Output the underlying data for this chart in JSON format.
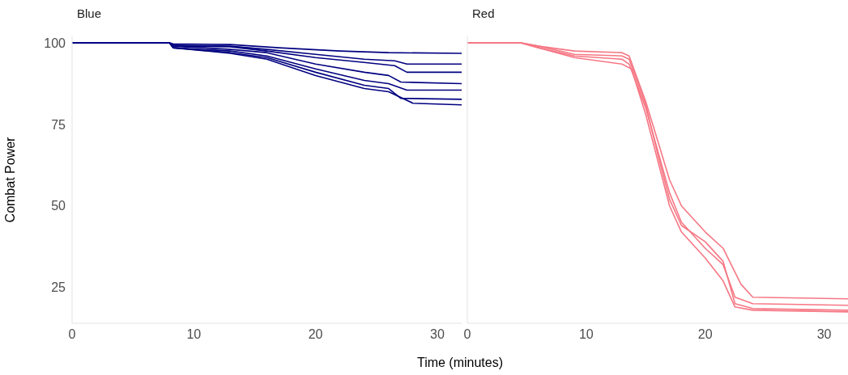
{
  "chart_data": [
    {
      "type": "line",
      "title": "Blue",
      "ylabel": "Combat Power",
      "xlabel": "Time (minutes)",
      "xlim": [
        0,
        32
      ],
      "xticks": [
        0,
        10,
        20,
        30
      ],
      "ylim": [
        14,
        102
      ],
      "yticks": [
        25,
        50,
        75,
        100
      ],
      "series": [
        {
          "color": "#000080",
          "x": [
            0,
            8,
            8.3,
            13,
            17,
            22,
            26,
            32
          ],
          "values": [
            100,
            100,
            99.7,
            99.5,
            98.5,
            97.5,
            97,
            96.8
          ]
        },
        {
          "color": "#000080",
          "x": [
            0,
            8,
            8.3,
            13,
            16,
            20,
            24,
            26.5,
            27.5,
            32
          ],
          "values": [
            100,
            100,
            99.3,
            99,
            98,
            96.5,
            95,
            94.5,
            93.5,
            93.5
          ]
        },
        {
          "color": "#000080",
          "x": [
            0,
            8,
            8.3,
            13,
            16,
            20,
            24,
            26.5,
            27.5,
            32
          ],
          "values": [
            100,
            100,
            99,
            98.8,
            97.5,
            95.5,
            94,
            93,
            91,
            91
          ]
        },
        {
          "color": "#000080",
          "x": [
            0,
            8,
            8.3,
            13,
            16,
            20,
            24,
            26,
            27,
            32
          ],
          "values": [
            100,
            100,
            99,
            98,
            97,
            93.5,
            91,
            90,
            88,
            87.5
          ]
        },
        {
          "color": "#000080",
          "x": [
            0,
            8,
            8.3,
            13,
            16,
            20,
            24,
            26,
            27.5,
            32
          ],
          "values": [
            100,
            100,
            98.5,
            97.5,
            96,
            92,
            88.5,
            87.5,
            85.5,
            85.5
          ]
        },
        {
          "color": "#000080",
          "x": [
            0,
            8,
            8.3,
            13,
            16,
            20,
            24,
            26,
            27,
            32
          ],
          "values": [
            100,
            100,
            98.5,
            97,
            95.5,
            91,
            87,
            86,
            83,
            82.7
          ]
        },
        {
          "color": "#000080",
          "x": [
            0,
            8,
            8.3,
            13,
            16,
            20,
            24,
            26,
            28,
            32
          ],
          "values": [
            100,
            100,
            98.5,
            96.8,
            95,
            90,
            86,
            85,
            81.5,
            81
          ]
        }
      ]
    },
    {
      "type": "line",
      "title": "Red",
      "tick_labels": "x",
      "xlim": [
        0,
        32
      ],
      "xticks": [
        0,
        10,
        20,
        30
      ],
      "ylim": [
        14,
        102
      ],
      "yticks": [
        25,
        50,
        75,
        100
      ],
      "series": [
        {
          "color": "#f67784",
          "x": [
            0,
            4.5,
            6,
            9,
            13,
            13.6,
            15,
            16,
            17,
            18,
            20,
            21.5,
            23,
            24,
            32
          ],
          "values": [
            100,
            100,
            99,
            97.5,
            97,
            96,
            82,
            70,
            58,
            50,
            42,
            37,
            26,
            22,
            21.5
          ]
        },
        {
          "color": "#f67784",
          "x": [
            0,
            4.5,
            6,
            9,
            13,
            13.6,
            15,
            16,
            17,
            18,
            20,
            21.5,
            22.5,
            24,
            32
          ],
          "values": [
            100,
            100,
            98.5,
            96,
            95,
            93.5,
            80,
            67,
            54,
            45,
            37,
            32,
            22,
            20,
            19.5
          ]
        },
        {
          "color": "#f67784",
          "x": [
            0,
            4.5,
            6,
            9,
            13,
            13.8,
            15,
            16,
            17,
            18,
            20,
            21.5,
            22.5,
            24,
            32
          ],
          "values": [
            100,
            100,
            98.5,
            95.5,
            93.5,
            92,
            78,
            64,
            50,
            42,
            34,
            27,
            19,
            18,
            17.5
          ]
        },
        {
          "color": "#f67784",
          "x": [
            0,
            4.5,
            6,
            9,
            13,
            13.6,
            15,
            16,
            17,
            18,
            20,
            21.5,
            22.5,
            24,
            32
          ],
          "values": [
            100,
            100,
            99,
            96.5,
            96,
            95,
            81,
            66,
            52,
            44,
            39,
            33,
            20,
            18.5,
            18
          ]
        }
      ]
    }
  ]
}
